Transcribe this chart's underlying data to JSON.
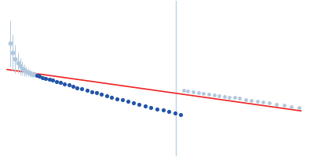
{
  "background_color": "#ffffff",
  "line_color": "#ee2222",
  "line_x": [
    0.0,
    1.0
  ],
  "line_y_start": 0.62,
  "line_y_end": 0.3,
  "vline_x": 0.573,
  "vline_color": "#b8d4e8",
  "vline_lw": 1.0,
  "excluded_left_x": [
    0.012,
    0.02,
    0.03,
    0.038,
    0.046,
    0.053,
    0.06,
    0.067,
    0.073,
    0.079,
    0.085,
    0.091,
    0.097
  ],
  "excluded_left_y": [
    0.82,
    0.75,
    0.7,
    0.67,
    0.645,
    0.63,
    0.615,
    0.605,
    0.598,
    0.592,
    0.587,
    0.583,
    0.579
  ],
  "excluded_left_yerr": [
    0.18,
    0.14,
    0.11,
    0.08,
    0.065,
    0.055,
    0.045,
    0.038,
    0.032,
    0.027,
    0.023,
    0.02,
    0.018
  ],
  "excluded_right_x": [
    0.6,
    0.615,
    0.632,
    0.65,
    0.668,
    0.685,
    0.703,
    0.72,
    0.738,
    0.755,
    0.773,
    0.79,
    0.81,
    0.83,
    0.85,
    0.87,
    0.89,
    0.915,
    0.94,
    0.965,
    0.99
  ],
  "excluded_right_y": [
    0.461,
    0.456,
    0.45,
    0.444,
    0.438,
    0.432,
    0.426,
    0.42,
    0.414,
    0.408,
    0.402,
    0.396,
    0.389,
    0.381,
    0.374,
    0.367,
    0.36,
    0.351,
    0.342,
    0.333,
    0.324
  ],
  "fit_x": [
    0.103,
    0.112,
    0.122,
    0.133,
    0.145,
    0.157,
    0.17,
    0.183,
    0.197,
    0.211,
    0.225,
    0.24,
    0.256,
    0.272,
    0.288,
    0.305,
    0.322,
    0.34,
    0.357,
    0.375,
    0.393,
    0.412,
    0.431,
    0.45,
    0.47,
    0.49,
    0.51,
    0.53,
    0.55,
    0.57,
    0.59
  ],
  "fit_y": [
    0.572,
    0.566,
    0.559,
    0.552,
    0.544,
    0.536,
    0.527,
    0.518,
    0.509,
    0.5,
    0.49,
    0.48,
    0.47,
    0.46,
    0.45,
    0.439,
    0.428,
    0.417,
    0.406,
    0.395,
    0.384,
    0.373,
    0.362,
    0.351,
    0.34,
    0.328,
    0.317,
    0.306,
    0.295,
    0.284,
    0.274
  ],
  "dot_color_fit": "#2255aa",
  "dot_color_excl": "#b0c8dd",
  "dot_size_fit": 14,
  "dot_size_excl": 12,
  "ecolor": "#b0c8dd",
  "elinewidth": 0.7,
  "capsize": 0,
  "xlim": [
    -0.02,
    1.04
  ],
  "ylim": [
    -0.05,
    1.15
  ]
}
